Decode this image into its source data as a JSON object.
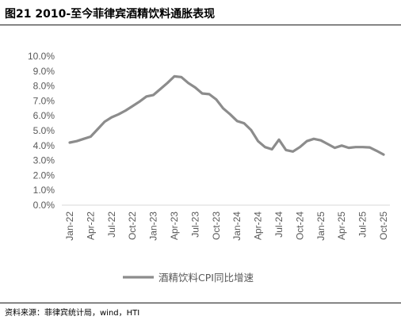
{
  "header": {
    "title": "图21 2010-至今菲律宾酒精饮料通胀表现"
  },
  "footer": {
    "source": "资料来源：菲律宾统计局，wind，HTI"
  },
  "colors": {
    "series": "#8c8c8c",
    "axis": "#d9d9d9",
    "tick_text": "#595959"
  },
  "chart_data": {
    "type": "line",
    "title": "",
    "xlabel": "",
    "ylabel": "",
    "y_tick_labels": [
      "0.0%",
      "1.0%",
      "2.0%",
      "3.0%",
      "4.0%",
      "5.0%",
      "6.0%",
      "7.0%",
      "8.0%",
      "9.0%",
      "10.0%"
    ],
    "ylim": [
      0,
      10
    ],
    "x_tick_labels": [
      "Jan-22",
      "Apr-22",
      "Jul-22",
      "Oct-22",
      "Jan-23",
      "Apr-23",
      "Jul-23",
      "Oct-23",
      "Jan-24",
      "Apr-24",
      "Jul-24",
      "Oct-24",
      "Jan-25",
      "Apr-25",
      "Jul-25",
      "Oct-25"
    ],
    "grid": false,
    "legend_position": "bottom",
    "series": [
      {
        "name": "酒精饮料CPI同比增速",
        "x": [
          "Jan-22",
          "Feb-22",
          "Mar-22",
          "Apr-22",
          "May-22",
          "Jun-22",
          "Jul-22",
          "Aug-22",
          "Sep-22",
          "Oct-22",
          "Nov-22",
          "Dec-22",
          "Jan-23",
          "Feb-23",
          "Mar-23",
          "Apr-23",
          "May-23",
          "Jun-23",
          "Jul-23",
          "Aug-23",
          "Sep-23",
          "Oct-23",
          "Nov-23",
          "Dec-23",
          "Jan-24",
          "Feb-24",
          "Mar-24",
          "Apr-24",
          "May-24",
          "Jun-24",
          "Jul-24",
          "Aug-24",
          "Sep-24",
          "Oct-24",
          "Nov-24",
          "Dec-24",
          "Jan-25",
          "Feb-25",
          "Mar-25",
          "Apr-25",
          "May-25",
          "Jun-25",
          "Jul-25",
          "Aug-25",
          "Sep-25",
          "Oct-25"
        ],
        "values": [
          4.2,
          4.3,
          4.45,
          4.6,
          5.1,
          5.6,
          5.9,
          6.1,
          6.35,
          6.65,
          6.95,
          7.3,
          7.4,
          7.8,
          8.2,
          8.65,
          8.6,
          8.2,
          7.9,
          7.5,
          7.45,
          7.1,
          6.5,
          6.1,
          5.65,
          5.5,
          5.05,
          4.3,
          3.9,
          3.75,
          4.4,
          3.7,
          3.6,
          3.9,
          4.3,
          4.45,
          4.35,
          4.1,
          3.85,
          4.0,
          3.85,
          3.9,
          3.9,
          3.88,
          3.65,
          3.4
        ]
      }
    ]
  }
}
